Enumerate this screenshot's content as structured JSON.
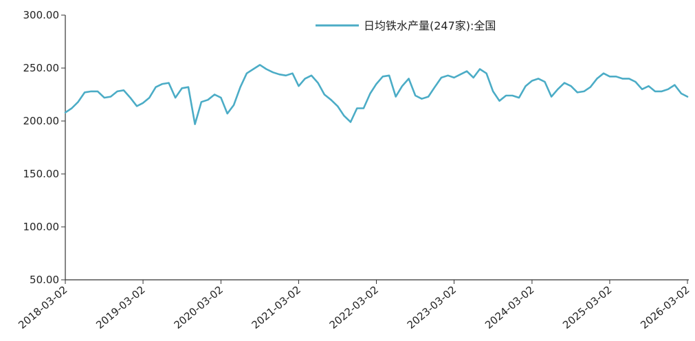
{
  "chart_data": {
    "type": "line",
    "title": "",
    "xlabel": "",
    "ylabel": "",
    "ylim": [
      50,
      300
    ],
    "y_ticks": [
      "300.00",
      "250.00",
      "200.00",
      "150.00",
      "100.00",
      "50.00"
    ],
    "y_tick_values": [
      300,
      250,
      200,
      150,
      100,
      50
    ],
    "x_ticks": [
      "2018-03-02",
      "2019-03-02",
      "2020-03-02",
      "2021-03-02",
      "2022-03-02",
      "2023-03-02",
      "2024-03-02",
      "2025-03-02",
      "2026-03-02"
    ],
    "xlim": [
      "2018-03-02",
      "2026-03-02"
    ],
    "grid": false,
    "legend_position": "top-right",
    "series": [
      {
        "name": "日均铁水产量(247家):全国",
        "color": "#4bacc6",
        "x": [
          "2018-03-02",
          "2018-04-01",
          "2018-05-01",
          "2018-06-01",
          "2018-07-01",
          "2018-08-01",
          "2018-09-01",
          "2018-10-01",
          "2018-11-01",
          "2018-12-01",
          "2019-01-01",
          "2019-02-01",
          "2019-03-02",
          "2019-04-01",
          "2019-05-01",
          "2019-06-01",
          "2019-07-01",
          "2019-08-01",
          "2019-09-01",
          "2019-10-01",
          "2019-11-01",
          "2019-12-01",
          "2020-01-01",
          "2020-02-01",
          "2020-03-02",
          "2020-04-01",
          "2020-05-01",
          "2020-06-01",
          "2020-07-01",
          "2020-08-01",
          "2020-09-01",
          "2020-10-01",
          "2020-11-01",
          "2020-12-01",
          "2021-01-01",
          "2021-02-01",
          "2021-03-02",
          "2021-04-01",
          "2021-05-01",
          "2021-06-01",
          "2021-07-01",
          "2021-08-01",
          "2021-09-01",
          "2021-10-01",
          "2021-11-01",
          "2021-12-01",
          "2022-01-01",
          "2022-02-01",
          "2022-03-02",
          "2022-04-01",
          "2022-05-01",
          "2022-06-01",
          "2022-07-01",
          "2022-08-01",
          "2022-09-01",
          "2022-10-01",
          "2022-11-01",
          "2022-12-01",
          "2023-01-01",
          "2023-02-01",
          "2023-03-02",
          "2023-04-01",
          "2023-05-01",
          "2023-06-01",
          "2023-07-01",
          "2023-08-01",
          "2023-09-01",
          "2023-10-01",
          "2023-11-01",
          "2023-12-01",
          "2024-01-01",
          "2024-02-01",
          "2024-03-02",
          "2024-04-01",
          "2024-05-01",
          "2024-06-01",
          "2024-07-01",
          "2024-08-01",
          "2024-09-01",
          "2024-10-01",
          "2024-11-01",
          "2024-12-01",
          "2025-01-01",
          "2025-02-01",
          "2025-03-02",
          "2025-04-01",
          "2025-05-01",
          "2025-06-01",
          "2025-07-01",
          "2025-08-01",
          "2025-09-01",
          "2025-10-01",
          "2025-11-01",
          "2025-12-01",
          "2026-01-01",
          "2026-02-01",
          "2026-03-02"
        ],
        "values": [
          208,
          212,
          218,
          227,
          228,
          228,
          222,
          223,
          228,
          229,
          222,
          214,
          217,
          222,
          232,
          235,
          236,
          222,
          231,
          232,
          197,
          218,
          220,
          225,
          222,
          207,
          215,
          232,
          245,
          249,
          253,
          249,
          246,
          244,
          243,
          245,
          233,
          240,
          243,
          236,
          225,
          220,
          214,
          205,
          199,
          212,
          212,
          226,
          235,
          242,
          243,
          223,
          233,
          240,
          224,
          221,
          223,
          232,
          241,
          243,
          241,
          244,
          247,
          241,
          249,
          245,
          228,
          219,
          224,
          224,
          222,
          233,
          238,
          240,
          237,
          223,
          230,
          236,
          233,
          227,
          228,
          232,
          240,
          245,
          242,
          242,
          240,
          240,
          237,
          230,
          233,
          228,
          228,
          230,
          234,
          226,
          223
        ]
      }
    ]
  }
}
